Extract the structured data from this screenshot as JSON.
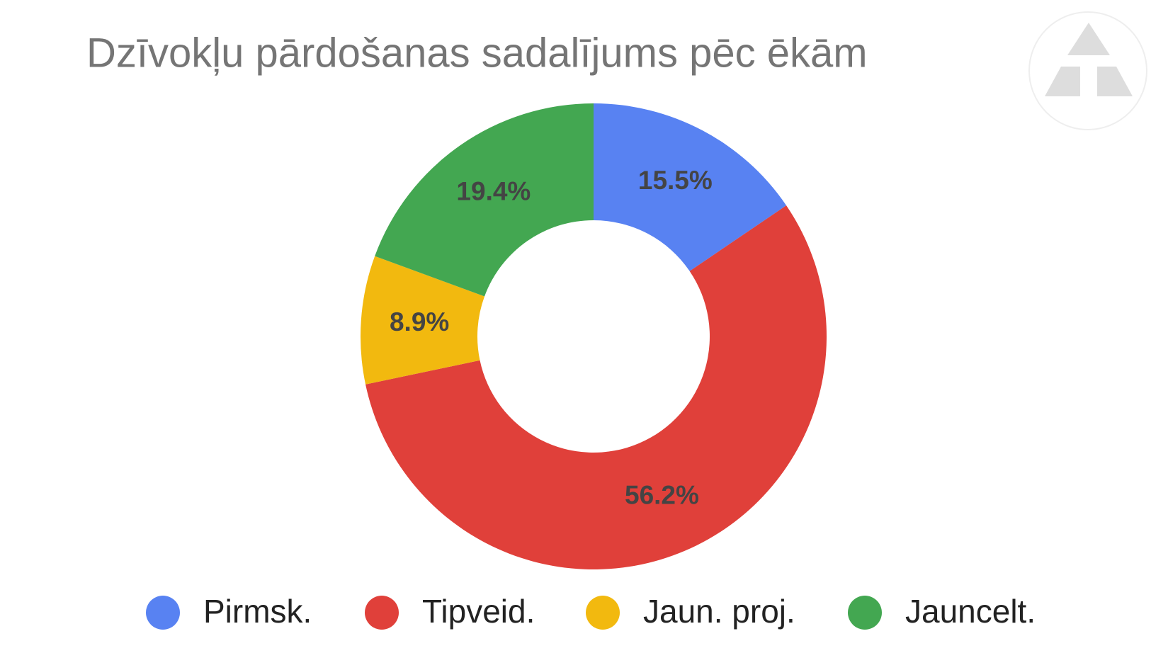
{
  "chart_data": {
    "type": "pie",
    "title": "Dzīvokļu pārdošanas sadalījums pēc ēkām",
    "categories": [
      "Pirmsk.",
      "Tipveid.",
      "Jaun. proj.",
      "Jauncelt."
    ],
    "values": [
      15.5,
      56.2,
      8.9,
      19.4
    ],
    "value_labels": [
      "15.5%",
      "56.2%",
      "8.9%",
      "19.4%"
    ],
    "colors": [
      "#5882f2",
      "#e0403a",
      "#f2b90f",
      "#43a751"
    ]
  }
}
